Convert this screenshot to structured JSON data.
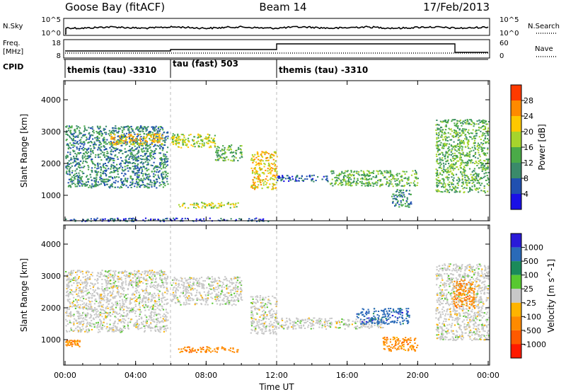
{
  "header": {
    "station": "Goose Bay (fitACF)",
    "beam": "Beam 14",
    "date": "17/Feb/2013"
  },
  "noise_panel": {
    "left_label": "N.Sky",
    "right_label": "N.Search",
    "left_ticks": [
      "10^5",
      "10^0"
    ],
    "right_ticks": [
      "10^5",
      "10^0"
    ]
  },
  "freq_panel": {
    "left_label_line1": "Freq.",
    "left_label_line2": "[MHz]",
    "right_label": "Nave",
    "left_ticks": [
      "18",
      "8"
    ],
    "right_ticks": [
      "60",
      "0"
    ]
  },
  "cpid": {
    "label": "CPID",
    "segments": [
      {
        "start_hr": 0,
        "text": "themis (tau) -3310"
      },
      {
        "start_hr": 6,
        "text": "tau (fast) 503"
      },
      {
        "start_hr": 12,
        "text": "themis (tau) -3310"
      }
    ]
  },
  "chart_data": [
    {
      "type": "heatmap",
      "title": "Power",
      "ylabel": "Slant Range [km]",
      "xlabel": "Time UT",
      "x_range_hr": [
        0,
        24
      ],
      "ylim": [
        200,
        4600
      ],
      "y_ticks": [
        1000,
        2000,
        3000,
        4000
      ],
      "colorbar": {
        "label": "Power [dB]",
        "ticks": [
          "4",
          "8",
          "12",
          "16",
          "20",
          "24",
          "28"
        ],
        "colors": [
          "#1a10e6",
          "#2050b0",
          "#3a8a6a",
          "#4aaa48",
          "#a6d42c",
          "#ffc800",
          "#ff8a00",
          "#ff3a00"
        ]
      },
      "echo_regions": [
        {
          "t0": 0.0,
          "t1": 5.8,
          "r_lo": 1250,
          "r_hi": 3200,
          "level": 2
        },
        {
          "t0": 2.5,
          "t1": 5.5,
          "r_lo": 2600,
          "r_hi": 2950,
          "level": 5
        },
        {
          "t0": 6.0,
          "t1": 8.5,
          "r_lo": 2500,
          "r_hi": 2950,
          "level": 4
        },
        {
          "t0": 8.5,
          "t1": 10.0,
          "r_lo": 2100,
          "r_hi": 2600,
          "level": 3
        },
        {
          "t0": 6.4,
          "t1": 9.8,
          "r_lo": 620,
          "r_hi": 800,
          "level": 4
        },
        {
          "t0": 10.5,
          "t1": 12.0,
          "r_lo": 1200,
          "r_hi": 2400,
          "level": 5
        },
        {
          "t0": 12.0,
          "t1": 15.0,
          "r_lo": 1450,
          "r_hi": 1650,
          "level": 1
        },
        {
          "t0": 15.0,
          "t1": 20.0,
          "r_lo": 1300,
          "r_hi": 1800,
          "level": 3
        },
        {
          "t0": 18.5,
          "t1": 19.6,
          "r_lo": 650,
          "r_hi": 1200,
          "level": 2
        },
        {
          "t0": 21.0,
          "t1": 24.0,
          "r_lo": 1100,
          "r_hi": 3400,
          "level": 3
        },
        {
          "t0": 0.0,
          "t1": 11.5,
          "r_lo": 200,
          "r_hi": 300,
          "level": 1
        }
      ]
    },
    {
      "type": "heatmap",
      "title": "Velocity",
      "ylabel": "Slant Range [km]",
      "xlabel": "Time UT",
      "x_range_hr": [
        0,
        24
      ],
      "ylim": [
        200,
        4600
      ],
      "y_ticks": [
        1000,
        2000,
        3000,
        4000
      ],
      "x_tick_labels": [
        "00:00",
        "04:00",
        "08:00",
        "12:00",
        "16:00",
        "20:00",
        "00:00"
      ],
      "colorbar": {
        "label": "Velocity [m s^-1]",
        "ticks": [
          "1000",
          "500",
          "100",
          "25",
          "-25",
          "-100",
          "-500",
          "-1000"
        ],
        "colors": [
          "#2a1ad8",
          "#2a6ab8",
          "#1a8a5a",
          "#58c830",
          "#c8c8c8",
          "#ffb400",
          "#ff8a00",
          "#ff5a00",
          "#ff1a00"
        ]
      },
      "echo_regions": [
        {
          "t0": 0.0,
          "t1": 5.8,
          "r_lo": 1250,
          "r_hi": 3200,
          "level": 4
        },
        {
          "t0": 6.0,
          "t1": 10.0,
          "r_lo": 2100,
          "r_hi": 3000,
          "level": 4
        },
        {
          "t0": 6.4,
          "t1": 9.8,
          "r_lo": 620,
          "r_hi": 800,
          "level": 6
        },
        {
          "t0": 0.0,
          "t1": 0.8,
          "r_lo": 800,
          "r_hi": 1000,
          "level": 6
        },
        {
          "t0": 10.5,
          "t1": 12.0,
          "r_lo": 1200,
          "r_hi": 2400,
          "level": 4
        },
        {
          "t0": 12.0,
          "t1": 18.0,
          "r_lo": 1350,
          "r_hi": 1700,
          "level": 4
        },
        {
          "t0": 16.5,
          "t1": 19.5,
          "r_lo": 1500,
          "r_hi": 2000,
          "level": 1
        },
        {
          "t0": 18.0,
          "t1": 20.0,
          "r_lo": 650,
          "r_hi": 1100,
          "level": 6
        },
        {
          "t0": 21.0,
          "t1": 24.0,
          "r_lo": 1000,
          "r_hi": 3400,
          "level": 4
        },
        {
          "t0": 22.0,
          "t1": 23.2,
          "r_lo": 2000,
          "r_hi": 2900,
          "level": 6
        }
      ]
    }
  ]
}
